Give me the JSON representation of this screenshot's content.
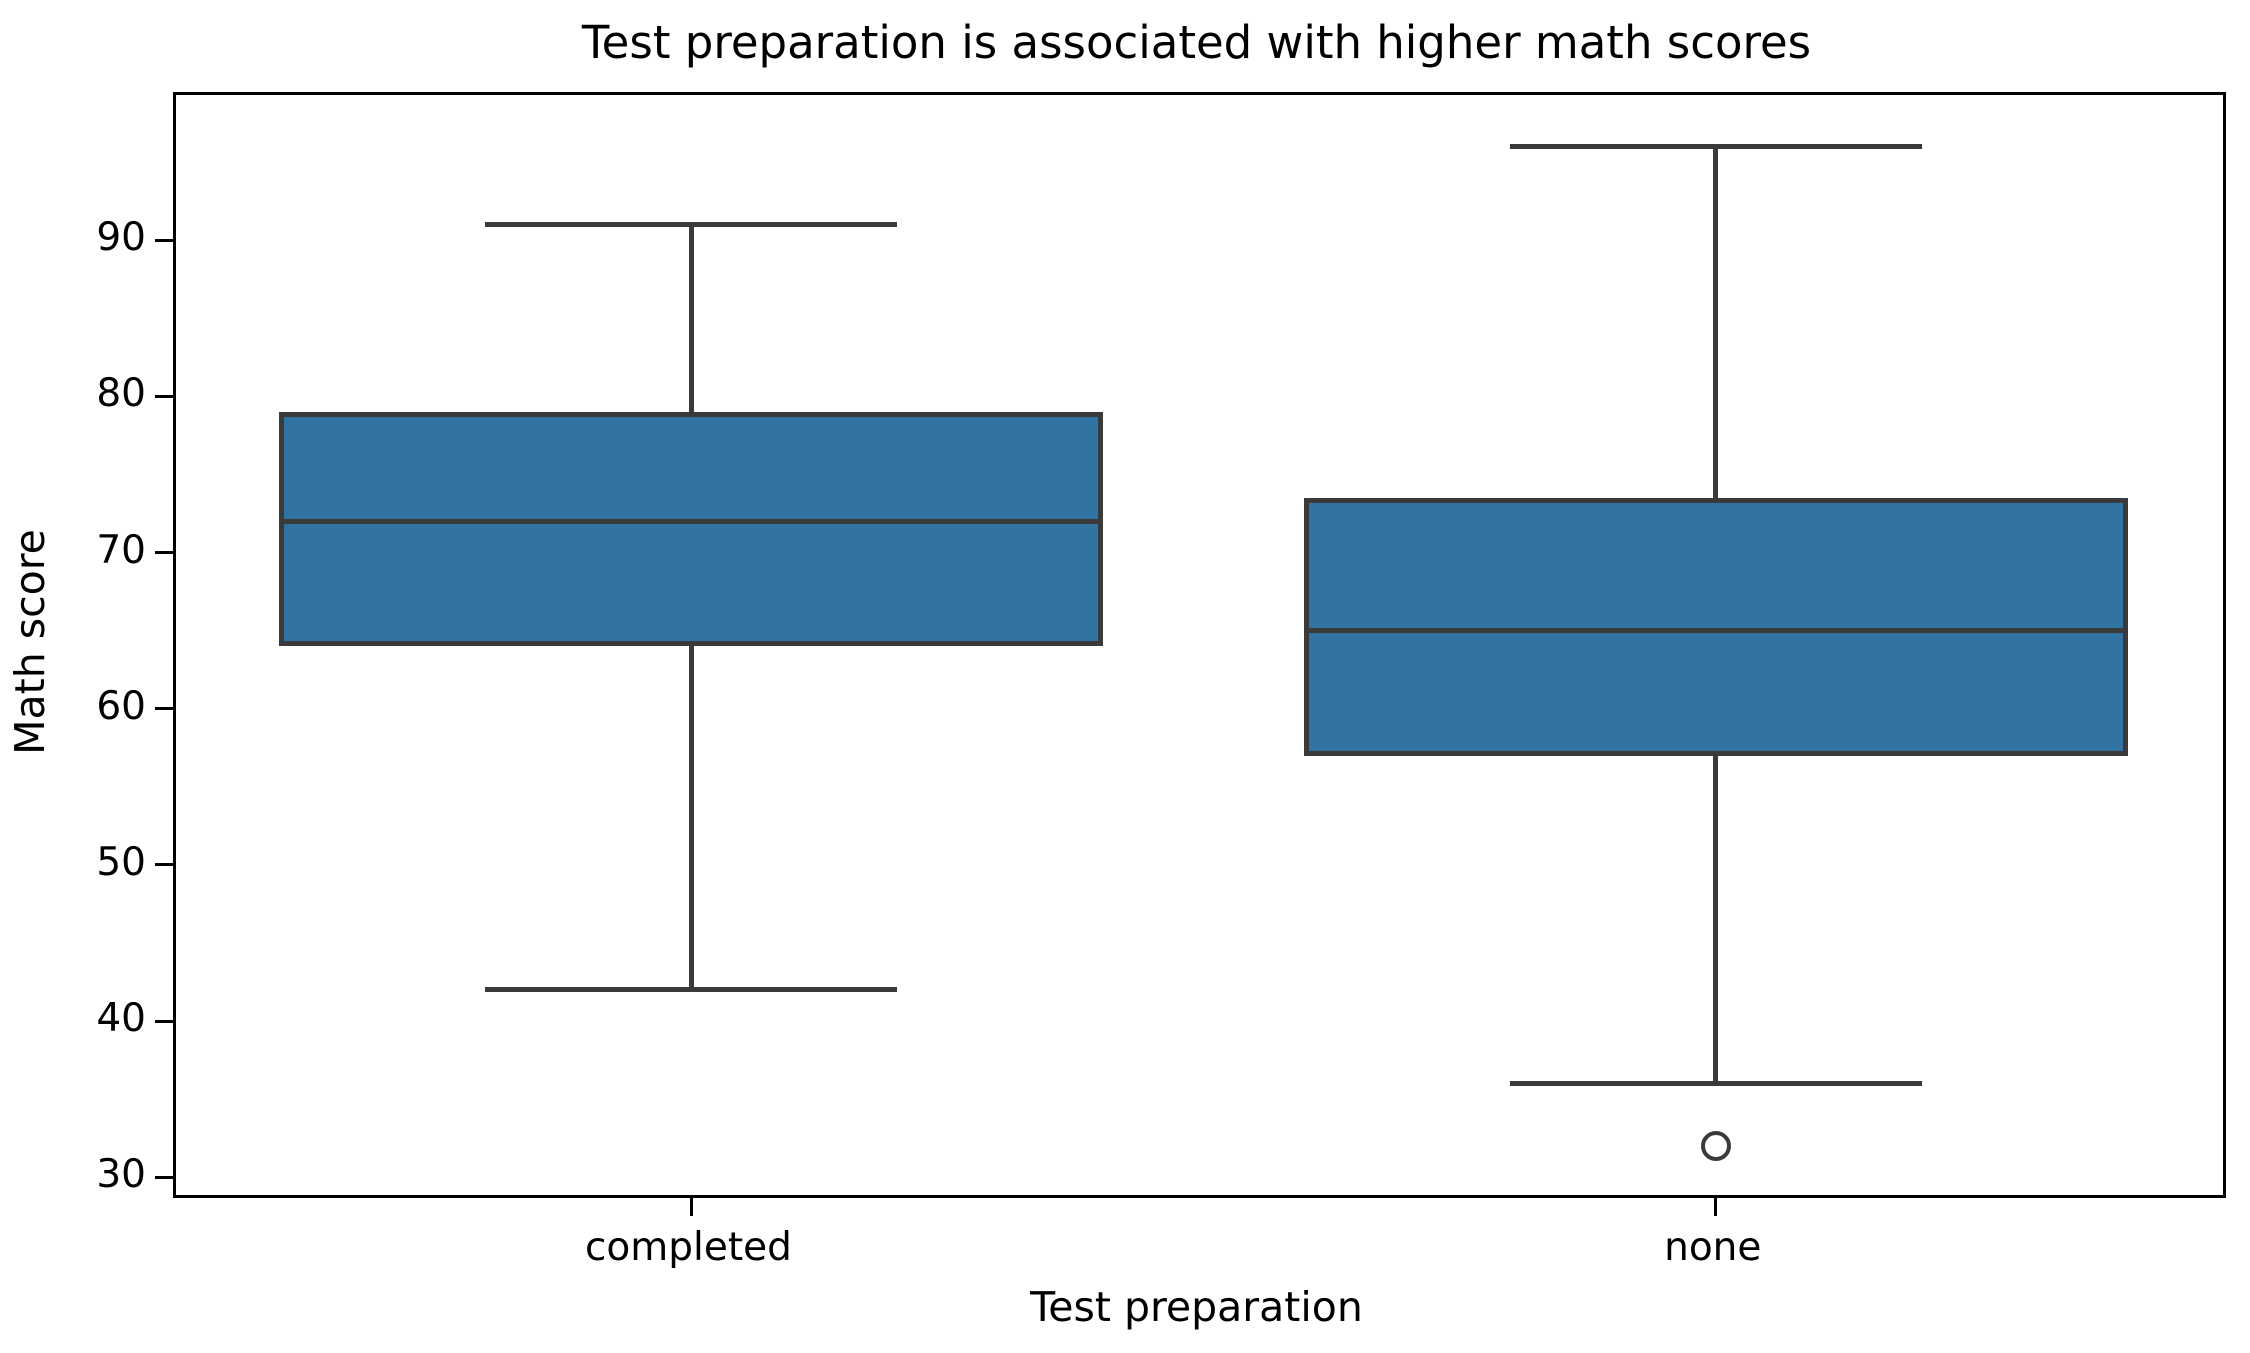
{
  "chart_data": {
    "type": "boxplot",
    "title": "Test preparation is associated with higher math scores",
    "xlabel": "Test preparation",
    "ylabel": "Math score",
    "categories": [
      "completed",
      "none"
    ],
    "series": [
      {
        "name": "completed",
        "whisker_low": 42,
        "q1": 64,
        "median": 72,
        "q3": 79,
        "whisker_high": 91,
        "outliers": []
      },
      {
        "name": "none",
        "whisker_low": 36,
        "q1": 57,
        "median": 65,
        "q3": 73.5,
        "whisker_high": 96,
        "outliers": [
          32
        ]
      }
    ],
    "y_ticks": [
      30,
      40,
      50,
      60,
      70,
      80,
      90
    ],
    "ylim": [
      28.87,
      99.3
    ],
    "grid": false,
    "legend": false,
    "colors": {
      "box_fill": "#3274A1",
      "box_edge": "#3A3A3A",
      "whisker": "#3A3A3A",
      "median": "#3A3A3A",
      "outlier": "#3A3A3A",
      "spine": "#000000",
      "text": "#000000"
    }
  }
}
